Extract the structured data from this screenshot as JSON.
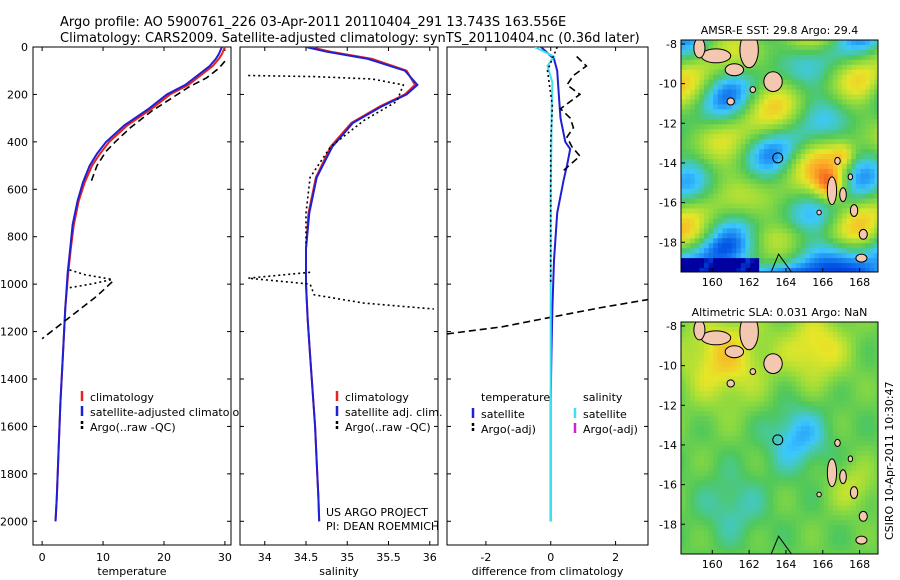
{
  "header": {
    "line1": "Argo profile: AO 5900761_226 03-Apr-2011 20110404_291 13.743S 163.556E",
    "line2": "Climatology: CARS2009. Satellite-adjusted climatology: synTS_20110404.nc (0.36d later)"
  },
  "footer": {
    "project": "US ARGO PROJECT",
    "pi": "PI: DEAN ROEMMICH",
    "stamp": "CSIRO 10-Apr-2011 10:30:47"
  },
  "colors": {
    "climatology": "#e8221c",
    "satellite": "#1f1fd6",
    "argo": "#000000",
    "sal_sat": "#3fe0f0",
    "sal_argo": "#d020d0"
  },
  "chart_data": [
    {
      "type": "line",
      "xlabel": "temperature",
      "ylabel": "",
      "xlim": [
        -1.5,
        31
      ],
      "ylim": [
        2100,
        0
      ],
      "xticks": [
        0,
        10,
        20,
        30
      ],
      "yticks": [
        0,
        200,
        400,
        600,
        800,
        1000,
        1200,
        1400,
        1600,
        1800,
        2000
      ],
      "legend": {
        "entries": [
          "climatology",
          "satellite-adjusted climatology",
          "Argo(..raw -QC)"
        ]
      },
      "series": [
        {
          "name": "climatology",
          "color": "#e8221c",
          "style": "solid",
          "x": [
            30,
            29.5,
            29,
            28,
            26,
            24,
            21,
            18,
            14,
            11,
            9.5,
            8.2,
            7,
            6,
            5.2,
            4.7,
            4.3,
            3.8,
            3.4,
            3.0,
            2.7,
            2.4,
            2.2
          ],
          "y": [
            0,
            30,
            50,
            80,
            120,
            160,
            200,
            260,
            330,
            400,
            450,
            500,
            570,
            650,
            750,
            850,
            950,
            1100,
            1300,
            1500,
            1700,
            1900,
            2000
          ]
        },
        {
          "name": "satellite-adjusted climatology",
          "color": "#1f1fd6",
          "style": "solid",
          "x": [
            29.5,
            29,
            28.5,
            27.5,
            25.5,
            23.5,
            20.5,
            17.5,
            13.5,
            10.5,
            9,
            7.8,
            6.7,
            5.8,
            5.0,
            4.6,
            4.2,
            3.8,
            3.4,
            3.0,
            2.7,
            2.4,
            2.2
          ],
          "y": [
            0,
            30,
            50,
            80,
            120,
            160,
            200,
            260,
            330,
            400,
            450,
            500,
            570,
            650,
            750,
            850,
            950,
            1100,
            1300,
            1500,
            1700,
            1900,
            2000
          ]
        },
        {
          "name": "Argo(..raw -QC)",
          "color": "#000000",
          "style": "dashed",
          "x": [
            30,
            29,
            27,
            24,
            21,
            18,
            14.5,
            12,
            10.5,
            9,
            8
          ],
          "y": [
            60,
            90,
            130,
            170,
            220,
            270,
            340,
            400,
            440,
            500,
            570
          ]
        },
        {
          "name": "Argo(..raw -QC)",
          "color": "#000000",
          "style": "dashed",
          "x": [
            11.5,
            9,
            6,
            3,
            0
          ],
          "y": [
            990,
            1050,
            1110,
            1170,
            1230
          ]
        },
        {
          "name": "Argo(..raw -QC)",
          "color": "#000000",
          "style": "dotted",
          "x": [
            4.5,
            7,
            11.5,
            8,
            4.5
          ],
          "y": [
            940,
            960,
            980,
            1000,
            1015
          ]
        }
      ]
    },
    {
      "type": "line",
      "xlabel": "salinity",
      "xlim": [
        33.7,
        36.1
      ],
      "ylim": [
        2100,
        0
      ],
      "xticks": [
        34,
        34.5,
        35,
        35.5,
        36
      ],
      "yticks": [
        0,
        200,
        400,
        600,
        800,
        1000,
        1200,
        1400,
        1600,
        1800,
        2000
      ],
      "legend": {
        "entries": [
          "climatology",
          "satellite adj. clim.",
          "Argo(..raw -QC)"
        ]
      },
      "series": [
        {
          "name": "climatology",
          "color": "#e8221c",
          "style": "solid",
          "x": [
            34.55,
            34.8,
            35.3,
            35.72,
            35.82,
            35.7,
            35.4,
            35.05,
            34.8,
            34.62,
            34.53,
            34.5,
            34.5,
            34.52,
            34.55,
            34.58,
            34.61,
            34.63,
            34.65,
            34.66
          ],
          "y": [
            0,
            20,
            50,
            100,
            160,
            200,
            250,
            320,
            420,
            550,
            700,
            850,
            1000,
            1150,
            1300,
            1450,
            1600,
            1750,
            1900,
            2000
          ]
        },
        {
          "name": "satellite adj. clim.",
          "color": "#1f1fd6",
          "style": "solid",
          "x": [
            34.5,
            34.75,
            35.25,
            35.7,
            35.85,
            35.72,
            35.42,
            35.07,
            34.82,
            34.63,
            34.54,
            34.5,
            34.5,
            34.52,
            34.55,
            34.58,
            34.61,
            34.63,
            34.65,
            34.66
          ],
          "y": [
            0,
            20,
            50,
            100,
            160,
            200,
            250,
            320,
            420,
            550,
            700,
            850,
            1000,
            1150,
            1300,
            1450,
            1600,
            1750,
            1900,
            2000
          ]
        },
        {
          "name": "Argo(..raw -QC)",
          "color": "#000000",
          "style": "dotted",
          "x": [
            33.8,
            34.6,
            35.3,
            35.68,
            35.6,
            35.2,
            34.8,
            34.55,
            34.5,
            34.5
          ],
          "y": [
            120,
            125,
            135,
            160,
            230,
            310,
            420,
            550,
            700,
            840
          ]
        },
        {
          "name": "Argo(..raw -QC)",
          "color": "#000000",
          "style": "dotted",
          "x": [
            34.55,
            33.8,
            34.55,
            34.6,
            35.2,
            36.05
          ],
          "y": [
            950,
            975,
            1000,
            1045,
            1080,
            1105
          ]
        }
      ]
    },
    {
      "type": "line",
      "xlabel": "difference from climatology",
      "xlim": [
        -3.2,
        3
      ],
      "ylim": [
        2100,
        0
      ],
      "xticks": [
        -2,
        0,
        2
      ],
      "yticks": [
        0,
        200,
        400,
        600,
        800,
        1000,
        1200,
        1400,
        1600,
        1800,
        2000
      ],
      "legend": {
        "groups": [
          {
            "title": "temperature",
            "entries": [
              "satellite",
              "Argo(-adj)"
            ]
          },
          {
            "title": "salinity",
            "entries": [
              "satellite",
              "Argo(-adj)"
            ]
          }
        ]
      },
      "series": [
        {
          "name": "temperature satellite",
          "color": "#1f1fd6",
          "style": "solid",
          "x": [
            -0.3,
            0.1,
            0.2,
            0.25,
            0.3,
            0.45,
            0.6,
            0.5,
            0.4,
            0.2,
            0.1,
            0.05,
            0.02,
            0,
            0,
            0,
            0
          ],
          "y": [
            0,
            50,
            100,
            200,
            300,
            400,
            430,
            500,
            560,
            700,
            900,
            1100,
            1300,
            1500,
            1700,
            1900,
            2000
          ]
        },
        {
          "name": "temperature Argo(-adj)",
          "color": "#000000",
          "style": "dashed",
          "x": [
            0.8,
            1.1,
            0.7,
            0.5,
            0.9,
            0.3,
            0.6,
            0.7,
            0.5,
            0.65,
            0.9,
            0.4
          ],
          "y": [
            40,
            80,
            120,
            160,
            200,
            260,
            300,
            340,
            380,
            420,
            460,
            520
          ]
        },
        {
          "name": "temperature Argo(-adj)",
          "color": "#000000",
          "style": "dashed",
          "x": [
            -3.2,
            -1.5,
            0,
            1.5,
            3.2
          ],
          "y": [
            1210,
            1180,
            1140,
            1100,
            1060
          ]
        },
        {
          "name": "salinity satellite",
          "color": "#3fe0f0",
          "style": "solid",
          "x": [
            -0.5,
            0.1,
            -0.1,
            0.05,
            0.03,
            0.02,
            0,
            0,
            0,
            0,
            0,
            0,
            0,
            0,
            0,
            0
          ],
          "y": [
            0,
            40,
            80,
            150,
            250,
            400,
            600,
            800,
            1000,
            1200,
            1400,
            1600,
            1800,
            1900,
            2000,
            2000
          ]
        },
        {
          "name": "salinity Argo(-adj)",
          "color": "#000000",
          "style": "dotted",
          "x": [
            0.2,
            -0.1,
            0.05,
            0,
            0,
            0,
            0
          ],
          "y": [
            0,
            100,
            250,
            400,
            600,
            800,
            1000
          ]
        }
      ]
    },
    {
      "type": "heatmap",
      "title": "AMSR-E SST: 29.8 Argo: 29.4",
      "xlim": [
        158.3,
        169
      ],
      "ylim": [
        -19.5,
        -7.8
      ],
      "xticks": [
        160,
        162,
        164,
        166,
        168
      ],
      "yticks": [
        -8,
        -10,
        -12,
        -14,
        -16,
        -18
      ],
      "marker": {
        "x": 163.556,
        "y": -13.743
      }
    },
    {
      "type": "heatmap",
      "title": "Altimetric SLA: 0.031 Argo: NaN",
      "xlim": [
        158.3,
        169
      ],
      "ylim": [
        -19.5,
        -7.8
      ],
      "xticks": [
        160,
        162,
        164,
        166,
        168
      ],
      "yticks": [
        -8,
        -10,
        -12,
        -14,
        -16,
        -18
      ],
      "marker": {
        "x": 163.556,
        "y": -13.743
      }
    }
  ]
}
